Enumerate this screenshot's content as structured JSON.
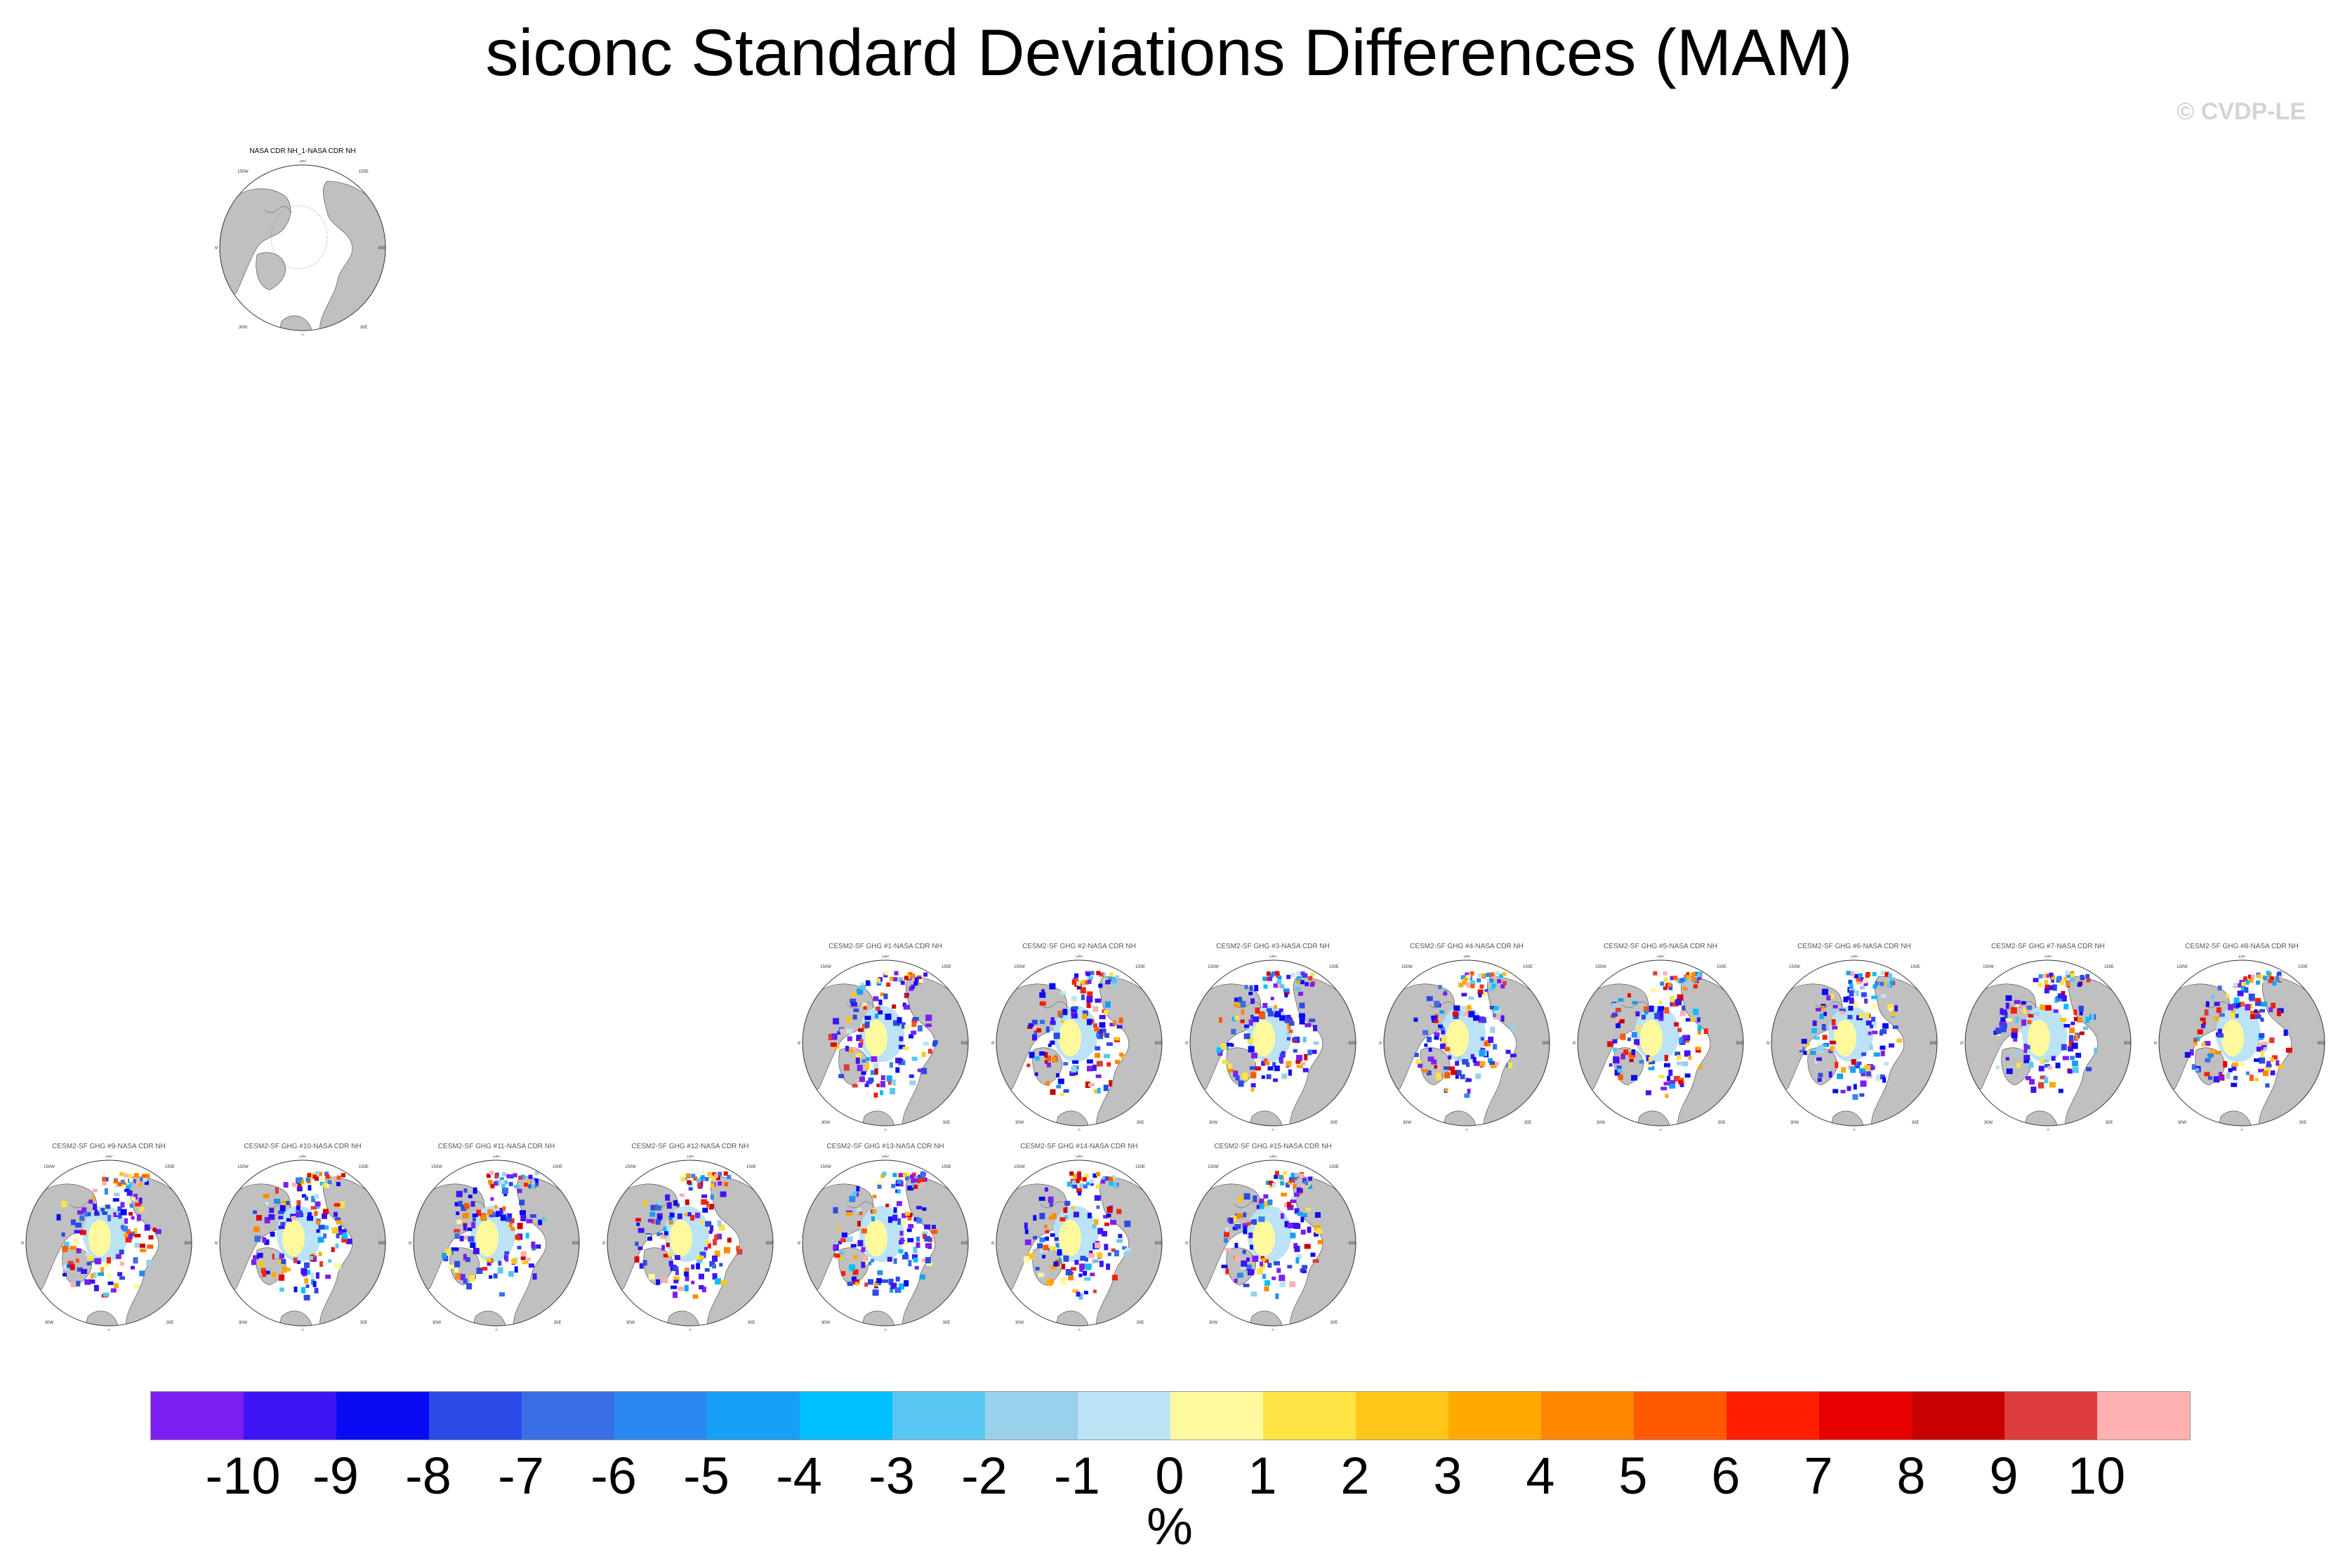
{
  "title": "siconc Standard Deviations Differences (MAM)",
  "watermark": "© CVDP-LE",
  "panels": [
    {
      "title": "NASA CDR NH_1-NASA CDR NH",
      "variant": "obs"
    },
    {
      "title": "CESM2-SF GHG #1-NASA CDR NH",
      "variant": "model"
    },
    {
      "title": "CESM2-SF GHG #2-NASA CDR NH",
      "variant": "model"
    },
    {
      "title": "CESM2-SF GHG #3-NASA CDR NH",
      "variant": "model"
    },
    {
      "title": "CESM2-SF GHG #4-NASA CDR NH",
      "variant": "model"
    },
    {
      "title": "CESM2-SF GHG #5-NASA CDR NH",
      "variant": "model"
    },
    {
      "title": "CESM2-SF GHG #6-NASA CDR NH",
      "variant": "model"
    },
    {
      "title": "CESM2-SF GHG #7-NASA CDR NH",
      "variant": "model"
    },
    {
      "title": "CESM2-SF GHG #8-NASA CDR NH",
      "variant": "model"
    },
    {
      "title": "CESM2-SF GHG #9-NASA CDR NH",
      "variant": "model"
    },
    {
      "title": "CESM2-SF GHG #10-NASA CDR NH",
      "variant": "model"
    },
    {
      "title": "CESM2-SF GHG #11-NASA CDR NH",
      "variant": "model"
    },
    {
      "title": "CESM2-SF GHG #12-NASA CDR NH",
      "variant": "model"
    },
    {
      "title": "CESM2-SF GHG #13-NASA CDR NH",
      "variant": "model"
    },
    {
      "title": "CESM2-SF GHG #14-NASA CDR NH",
      "variant": "model"
    },
    {
      "title": "CESM2-SF GHG #15-NASA CDR NH",
      "variant": "model"
    }
  ],
  "map_lon_labels": {
    "top": "180",
    "upper_left": "150W",
    "upper_right": "150E",
    "left": "90W",
    "right": "90E",
    "lower_left": "30W",
    "lower_right": "30E",
    "bottom": "0"
  },
  "colorbar": {
    "colors": [
      "#7b1ff0",
      "#3e14f5",
      "#0a0af5",
      "#2b4ae6",
      "#3a6fe4",
      "#2a88f0",
      "#15a0f5",
      "#00c0ff",
      "#58c8f2",
      "#99d0ec",
      "#bce3f5",
      "#fff99e",
      "#ffe345",
      "#ffc61a",
      "#ffaa00",
      "#ff8800",
      "#ff5a00",
      "#ff1e00",
      "#e60000",
      "#c80000",
      "#dc3c3c",
      "#ffb0b0"
    ],
    "ticks": [
      "-10",
      "-9",
      "-8",
      "-7",
      "-6",
      "-5",
      "-4",
      "-3",
      "-2",
      "-1",
      "0",
      "1",
      "2",
      "3",
      "4",
      "5",
      "6",
      "7",
      "8",
      "9",
      "10"
    ],
    "units": "%"
  }
}
